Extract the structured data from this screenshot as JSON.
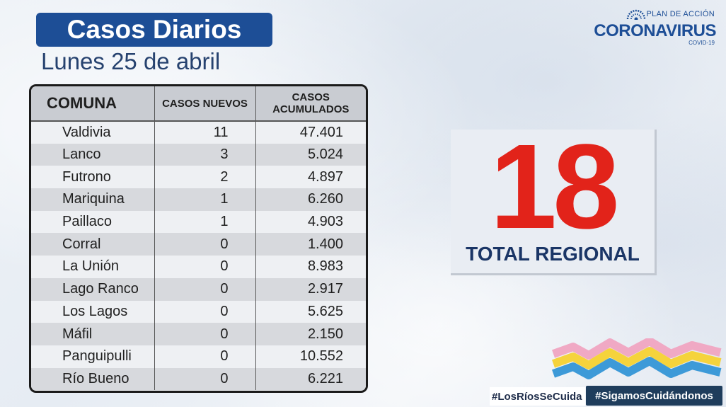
{
  "header": {
    "title": "Casos Diarios",
    "date": "Lunes 25 de abril"
  },
  "logo": {
    "plan": "PLAN DE ACCIÓN",
    "main": "CORONAVIRUS",
    "sub": "COVID-19"
  },
  "table": {
    "headers": {
      "comuna": "COMUNA",
      "nuevos": "CASOS NUEVOS",
      "acumulados_1": "CASOS",
      "acumulados_2": "ACUMULADOS"
    },
    "rows": [
      {
        "comuna": "Valdivia",
        "nuevos": "11",
        "acumulados": "47.401"
      },
      {
        "comuna": "Lanco",
        "nuevos": "3",
        "acumulados": "5.024"
      },
      {
        "comuna": "Futrono",
        "nuevos": "2",
        "acumulados": "4.897"
      },
      {
        "comuna": "Mariquina",
        "nuevos": "1",
        "acumulados": "6.260"
      },
      {
        "comuna": "Paillaco",
        "nuevos": "1",
        "acumulados": "4.903"
      },
      {
        "comuna": "Corral",
        "nuevos": "0",
        "acumulados": "1.400"
      },
      {
        "comuna": "La Unión",
        "nuevos": "0",
        "acumulados": "8.983"
      },
      {
        "comuna": "Lago Ranco",
        "nuevos": "0",
        "acumulados": "2.917"
      },
      {
        "comuna": "Los Lagos",
        "nuevos": "0",
        "acumulados": "5.625"
      },
      {
        "comuna": "Máfil",
        "nuevos": "0",
        "acumulados": "2.150"
      },
      {
        "comuna": "Panguipulli",
        "nuevos": "0",
        "acumulados": "10.552"
      },
      {
        "comuna": "Río Bueno",
        "nuevos": "0",
        "acumulados": "6.221"
      }
    ]
  },
  "total": {
    "number": "18",
    "label": "TOTAL REGIONAL"
  },
  "footer": {
    "hashtag_1": "#LosRíosSeCuida",
    "hashtag_2": "#SigamosCuidándonos"
  },
  "colors": {
    "brand_blue": "#1d4e96",
    "total_red": "#e2231a",
    "wave_pink": "#f0a9c4",
    "wave_yellow": "#f5d33c",
    "wave_blue": "#3d9ad8"
  }
}
